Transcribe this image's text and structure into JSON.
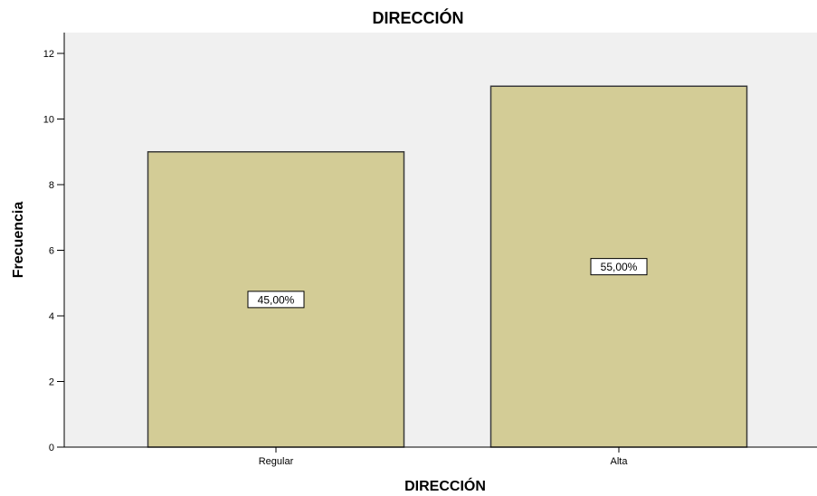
{
  "chart_data": {
    "type": "bar",
    "title": "DIRECCIÓN",
    "xlabel": "DIRECCIÓN",
    "ylabel": "Frecuencia",
    "categories": [
      "Regular",
      "Alta"
    ],
    "values": [
      9,
      11
    ],
    "data_labels": [
      "45,00%",
      "55,00%"
    ],
    "ylim": [
      0,
      12.5
    ],
    "yticks": [
      0,
      2,
      4,
      6,
      8,
      10,
      12
    ],
    "grid": false,
    "legend": "none",
    "colors": {
      "bar_fill": "#d3cc96",
      "bar_stroke": "#3a3a3a",
      "plot_background": "#f0f0f0",
      "axis": "#000000"
    }
  }
}
